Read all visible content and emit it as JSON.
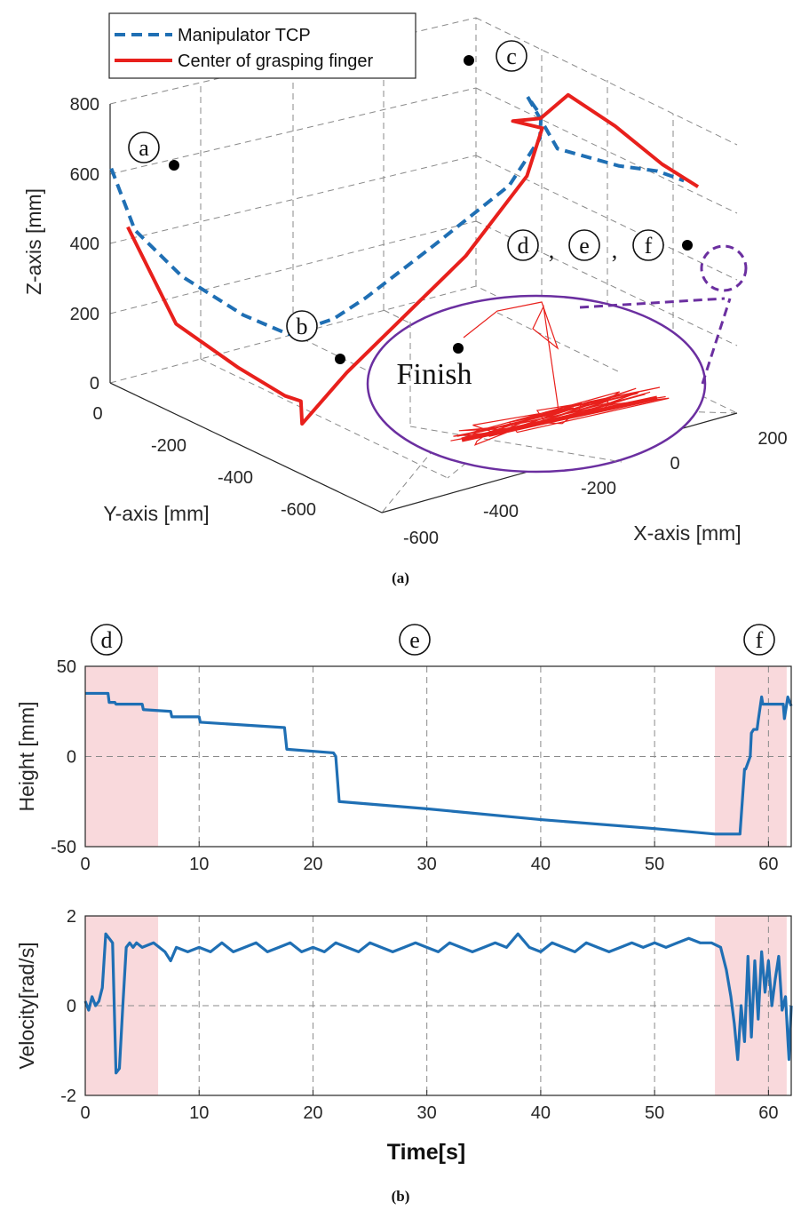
{
  "figure": {
    "caption_a": "(a)",
    "caption_b": "(b)"
  },
  "chart_data": [
    {
      "type": "line",
      "title": "",
      "xlabel": "X-axis [mm]",
      "ylabel": "Y-axis [mm]",
      "zlabel": "Z-axis [mm]",
      "x_ticks": [
        "-600",
        "-400",
        "-200",
        "0",
        "200"
      ],
      "y_ticks": [
        "0",
        "-200",
        "-400",
        "-600"
      ],
      "z_ticks": [
        "0",
        "200",
        "400",
        "600",
        "800"
      ],
      "legend": {
        "placement": "top-left",
        "entries": [
          "Manipulator TCP",
          "Center of grasping finger"
        ]
      },
      "series": [
        {
          "name": "Manipulator TCP",
          "color": "#1f6fb4",
          "style": "dashed",
          "points": [
            [
              0,
              -20,
              620
            ],
            [
              30,
              -60,
              450
            ],
            [
              90,
              -140,
              330
            ],
            [
              170,
              -220,
              230
            ],
            [
              230,
              -270,
              180
            ],
            [
              290,
              -320,
              230
            ],
            [
              330,
              -380,
              300
            ],
            [
              420,
              -460,
              460
            ],
            [
              520,
              -540,
              640
            ],
            [
              560,
              -580,
              780
            ],
            [
              560,
              -600,
              850
            ],
            [
              540,
              -610,
              910
            ],
            [
              600,
              -400,
              700
            ],
            [
              700,
              -250,
              600
            ],
            [
              760,
              -180,
              560
            ],
            [
              800,
              -150,
              520
            ]
          ]
        },
        {
          "name": "Center of grasping finger",
          "color": "#e8201c",
          "style": "solid",
          "points": [
            [
              20,
              -60,
              460
            ],
            [
              80,
              -160,
              200
            ],
            [
              160,
              -260,
              90
            ],
            [
              220,
              -330,
              20
            ],
            [
              240,
              -360,
              10
            ],
            [
              240,
              -380,
              -50
            ],
            [
              300,
              -420,
              100
            ],
            [
              460,
              -520,
              440
            ],
            [
              540,
              -600,
              680
            ],
            [
              560,
              -620,
              820
            ],
            [
              520,
              -600,
              840
            ],
            [
              560,
              -590,
              840
            ],
            [
              600,
              -580,
              900
            ],
            [
              680,
              -420,
              760
            ],
            [
              760,
              -260,
              600
            ],
            [
              820,
              -150,
              500
            ]
          ]
        }
      ],
      "markers": [
        {
          "label": "a",
          "text": "a"
        },
        {
          "label": "b",
          "text": "b"
        },
        {
          "label": "c",
          "text": "c"
        },
        {
          "label": "d",
          "text": "d"
        },
        {
          "label": "e",
          "text": "e"
        },
        {
          "label": "f",
          "text": "f"
        },
        {
          "label": "Finish",
          "text": "Finish"
        }
      ],
      "separators": [
        ",",
        ","
      ]
    },
    {
      "type": "line",
      "title": "",
      "xlabel": "",
      "ylabel": "Height [mm]",
      "xlim": [
        0,
        62
      ],
      "ylim": [
        -50,
        50
      ],
      "x_ticks": [
        0,
        10,
        20,
        30,
        40,
        50,
        60
      ],
      "y_ticks": [
        -50,
        0,
        50
      ],
      "grid": true,
      "phase_labels": [
        "d",
        "e",
        "f"
      ],
      "shaded_regions": [
        [
          0,
          6.4
        ],
        [
          55.3,
          61.6
        ]
      ],
      "shade_color": "#f9d9dc",
      "series": [
        {
          "color": "#1f6fb4",
          "x": [
            0,
            2,
            2.1,
            2.6,
            2.7,
            5.0,
            5.1,
            7.5,
            7.6,
            10.0,
            10.1,
            17.5,
            17.7,
            21.8,
            22.0,
            22.3,
            30,
            40,
            50,
            55.3,
            57.5,
            57.9,
            58.0,
            58.4,
            58.5,
            58.7,
            59.0,
            59.1,
            59.4,
            59.5,
            61.3,
            61.4,
            61.7,
            62
          ],
          "y": [
            35,
            35,
            30,
            30,
            29,
            29,
            26,
            25,
            22,
            22,
            19,
            16,
            4,
            2,
            0,
            -25,
            -29,
            -35,
            -40,
            -43,
            -43,
            -7,
            -7,
            0,
            13,
            15,
            15,
            20,
            33,
            29,
            29,
            21,
            33,
            28
          ]
        }
      ]
    },
    {
      "type": "line",
      "title": "",
      "xlabel": "Time[s]",
      "ylabel": "Velocity[rad/s]",
      "xlim": [
        0,
        62
      ],
      "ylim": [
        -2,
        2
      ],
      "x_ticks": [
        0,
        10,
        20,
        30,
        40,
        50,
        60
      ],
      "y_ticks": [
        -2,
        0,
        2
      ],
      "grid": true,
      "shaded_regions": [
        [
          0,
          6.4
        ],
        [
          55.3,
          61.6
        ]
      ],
      "shade_color": "#f9d9dc",
      "series": [
        {
          "color": "#1f6fb4",
          "x": [
            0,
            0.3,
            0.6,
            0.9,
            1.2,
            1.5,
            1.8,
            2.1,
            2.4,
            2.7,
            3.0,
            3.3,
            3.6,
            3.9,
            4.2,
            4.5,
            5,
            6,
            7,
            7.5,
            8,
            9,
            10,
            11,
            12,
            13,
            14,
            15,
            16,
            17,
            18,
            19,
            20,
            21,
            22,
            23,
            24,
            25,
            26,
            27,
            28,
            29,
            30,
            31,
            32,
            33,
            34,
            35,
            36,
            37,
            38,
            39,
            40,
            41,
            42,
            43,
            44,
            45,
            46,
            47,
            48,
            49,
            50,
            51,
            52,
            53,
            54,
            55,
            55.8,
            56.3,
            56.7,
            57.0,
            57.3,
            57.6,
            57.9,
            58.2,
            58.5,
            58.8,
            59.1,
            59.4,
            59.7,
            60.0,
            60.3,
            60.6,
            60.9,
            61.2,
            61.5,
            61.8,
            62
          ],
          "y": [
            0.1,
            -0.1,
            0.2,
            0.0,
            0.1,
            0.4,
            1.6,
            1.5,
            1.4,
            -1.5,
            -1.4,
            0.0,
            1.3,
            1.4,
            1.3,
            1.4,
            1.3,
            1.4,
            1.2,
            1.0,
            1.3,
            1.2,
            1.3,
            1.2,
            1.4,
            1.2,
            1.3,
            1.4,
            1.2,
            1.3,
            1.4,
            1.2,
            1.3,
            1.2,
            1.4,
            1.3,
            1.2,
            1.4,
            1.3,
            1.2,
            1.3,
            1.4,
            1.3,
            1.2,
            1.4,
            1.3,
            1.2,
            1.3,
            1.4,
            1.3,
            1.6,
            1.3,
            1.2,
            1.4,
            1.3,
            1.2,
            1.4,
            1.3,
            1.2,
            1.3,
            1.4,
            1.3,
            1.4,
            1.3,
            1.4,
            1.5,
            1.4,
            1.4,
            1.3,
            0.8,
            0.2,
            -0.4,
            -1.2,
            0.0,
            -0.8,
            1.1,
            -0.7,
            1.0,
            -0.3,
            1.2,
            0.3,
            1.0,
            0.0,
            0.6,
            1.1,
            -0.1,
            0.2,
            -1.2,
            0.0
          ]
        }
      ]
    }
  ]
}
